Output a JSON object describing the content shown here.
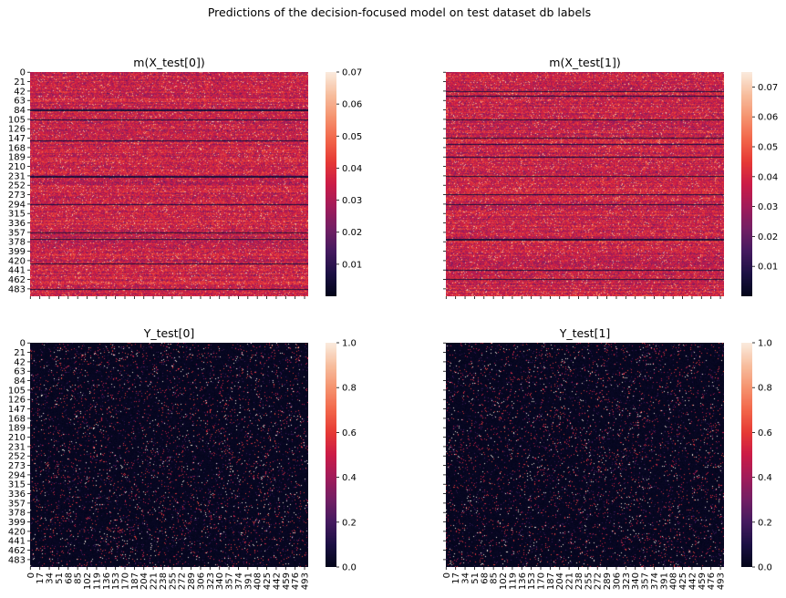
{
  "figure": {
    "suptitle": "Predictions of the decision-focused model on test dataset db labels"
  },
  "palette": {
    "colormap": "rocket",
    "background": "#ffffff"
  },
  "chart_data": [
    {
      "type": "heatmap",
      "title": "m(X_test[0])",
      "value_kind": "continuous",
      "colorbar_range": [
        0.0,
        0.07
      ],
      "colorbar_ticks": [
        "0.01",
        "0.02",
        "0.03",
        "0.04",
        "0.05",
        "0.06",
        "0.07"
      ],
      "y_tick_labels": [
        "0",
        "21",
        "42",
        "63",
        "84",
        "105",
        "126",
        "147",
        "168",
        "189",
        "210",
        "231",
        "252",
        "273",
        "294",
        "315",
        "336",
        "357",
        "378",
        "399",
        "420",
        "441",
        "462",
        "483"
      ],
      "x_tick_labels": [],
      "n_rows": 500,
      "n_cols": 500,
      "dark_rows": [
        84,
        85,
        105,
        152,
        231,
        234,
        294,
        357,
        372,
        427,
        483
      ],
      "seed": 11
    },
    {
      "type": "heatmap",
      "title": "m(X_test[1])",
      "value_kind": "continuous",
      "colorbar_range": [
        0.0,
        0.075
      ],
      "colorbar_ticks": [
        "0.01",
        "0.02",
        "0.03",
        "0.04",
        "0.05",
        "0.06",
        "0.07"
      ],
      "y_tick_labels": [],
      "x_tick_labels": [],
      "n_rows": 500,
      "n_cols": 500,
      "dark_rows": [
        42,
        52,
        105,
        147,
        160,
        189,
        231,
        273,
        294,
        372,
        374,
        441,
        462
      ],
      "seed": 23
    },
    {
      "type": "heatmap",
      "title": "Y_test[0]",
      "value_kind": "binary",
      "colorbar_range": [
        0.0,
        1.0
      ],
      "colorbar_ticks": [
        "0.0",
        "0.2",
        "0.4",
        "0.6",
        "0.8",
        "1.0"
      ],
      "y_tick_labels": [
        "0",
        "21",
        "42",
        "63",
        "84",
        "105",
        "126",
        "147",
        "168",
        "189",
        "210",
        "231",
        "252",
        "273",
        "294",
        "315",
        "336",
        "357",
        "378",
        "399",
        "420",
        "441",
        "462",
        "483"
      ],
      "x_tick_labels": [
        "0",
        "17",
        "34",
        "51",
        "68",
        "85",
        "102",
        "119",
        "136",
        "153",
        "170",
        "187",
        "204",
        "221",
        "238",
        "255",
        "272",
        "289",
        "306",
        "323",
        "340",
        "357",
        "374",
        "391",
        "408",
        "425",
        "442",
        "459",
        "476",
        "493"
      ],
      "n_rows": 500,
      "n_cols": 500,
      "seed": 37
    },
    {
      "type": "heatmap",
      "title": "Y_test[1]",
      "value_kind": "binary",
      "colorbar_range": [
        0.0,
        1.0
      ],
      "colorbar_ticks": [
        "0.0",
        "0.2",
        "0.4",
        "0.6",
        "0.8",
        "1.0"
      ],
      "y_tick_labels": [],
      "x_tick_labels": [
        "0",
        "17",
        "34",
        "51",
        "68",
        "85",
        "102",
        "119",
        "136",
        "153",
        "170",
        "187",
        "204",
        "221",
        "238",
        "255",
        "272",
        "289",
        "306",
        "323",
        "340",
        "357",
        "374",
        "391",
        "408",
        "425",
        "442",
        "459",
        "476",
        "493"
      ],
      "n_rows": 500,
      "n_cols": 500,
      "seed": 53
    }
  ]
}
